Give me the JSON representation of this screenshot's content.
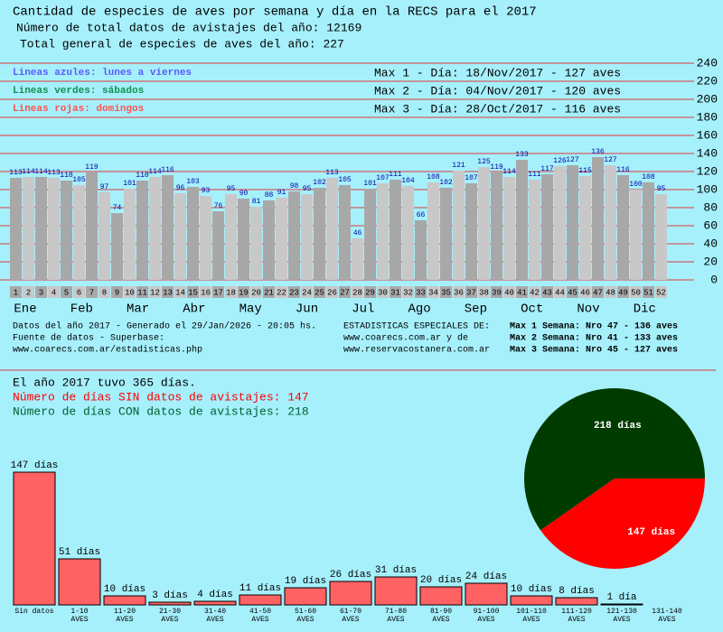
{
  "header": {
    "title": "Cantidad de especies de aves por semana y día en la RECS para el 2017",
    "line1": "Número de total datos de avistajes del año: 12169",
    "line2": "Total general de especies de aves del año: 227"
  },
  "legend_notes": [
    {
      "text": "Lineas azules: lunes a viernes",
      "color": "#5a5aff"
    },
    {
      "text": "Lineas verdes: sábados",
      "color": "#109050"
    },
    {
      "text": "Lineas rojas:  domingos",
      "color": "#ff5050"
    }
  ],
  "max_days": [
    "Max 1 - Día: 18/Nov/2017 - 127 aves",
    "Max 2 - Día: 04/Nov/2017 - 120 aves",
    "Max 3 - Día: 28/Oct/2017 - 116 aves"
  ],
  "chart_data": [
    {
      "type": "bar",
      "categories": [
        1,
        2,
        3,
        4,
        5,
        6,
        7,
        8,
        9,
        10,
        11,
        12,
        13,
        14,
        15,
        16,
        17,
        18,
        19,
        20,
        21,
        22,
        23,
        24,
        25,
        26,
        27,
        28,
        29,
        30,
        31,
        32,
        33,
        34,
        35,
        36,
        37,
        38,
        39,
        40,
        41,
        42,
        43,
        44,
        45,
        46,
        47,
        48,
        49,
        50,
        51,
        52
      ],
      "values": [
        113,
        114,
        114,
        113,
        110,
        105,
        119,
        97,
        74,
        101,
        110,
        114,
        116,
        96,
        103,
        93,
        76,
        95,
        90,
        81,
        88,
        91,
        98,
        95,
        102,
        113,
        105,
        46,
        101,
        107,
        111,
        104,
        66,
        108,
        102,
        121,
        107,
        125,
        119,
        114,
        133,
        111,
        117,
        126,
        127,
        115,
        136,
        127,
        116,
        100,
        108,
        95
      ],
      "colors": [
        "#a8a8a8",
        "#c8c8c8"
      ],
      "label_color": "#0000a0",
      "months": [
        "Ene",
        "Feb",
        "Mar",
        "Abr",
        "May",
        "Jun",
        "Jul",
        "Ago",
        "Sep",
        "Oct",
        "Nov",
        "Dic"
      ],
      "ylim": [
        0,
        240
      ],
      "yticks": [
        0,
        20,
        40,
        60,
        80,
        100,
        120,
        140,
        160,
        180,
        200,
        220,
        240
      ],
      "grid": true,
      "grid_color": "#e03a3a"
    },
    {
      "type": "pie",
      "values": [
        218,
        147
      ],
      "value_labels": [
        "218 días",
        "147 días"
      ],
      "colors": [
        "#003c00",
        "#ff0000"
      ]
    },
    {
      "type": "bar",
      "categories": [
        {
          "range": "Sin datos"
        },
        {
          "range": "1-10",
          "unit": "AVES"
        },
        {
          "range": "11-20",
          "unit": "AVES"
        },
        {
          "range": "21-30",
          "unit": "AVES"
        },
        {
          "range": "31-40",
          "unit": "AVES"
        },
        {
          "range": "41-50",
          "unit": "AVES"
        },
        {
          "range": "51-60",
          "unit": "AVES"
        },
        {
          "range": "61-70",
          "unit": "AVES"
        },
        {
          "range": "71-80",
          "unit": "AVES"
        },
        {
          "range": "81-90",
          "unit": "AVES"
        },
        {
          "range": "91-100",
          "unit": "AVES"
        },
        {
          "range": "101-110",
          "unit": "AVES"
        },
        {
          "range": "111-120",
          "unit": "AVES"
        },
        {
          "range": "121-130",
          "unit": "AVES"
        },
        {
          "range": "131-140",
          "unit": "AVES"
        }
      ],
      "values": [
        147,
        51,
        10,
        3,
        4,
        11,
        19,
        26,
        31,
        20,
        24,
        10,
        8,
        1,
        0
      ],
      "value_labels": [
        "147 días",
        "51 días",
        "10 días",
        "3 días",
        "4 días",
        "11 días",
        "19 días",
        "26 días",
        "31 días",
        "20 días",
        "24 días",
        "10 días",
        "8 días",
        "1 día",
        null
      ],
      "color": "#ff6262"
    }
  ],
  "footer": {
    "left": [
      "Datos del año 2017 - Generado el 29/Jan/2026 - 20:05 hs.",
      "Fuente de datos - Superbase:",
      "www.coarecs.com.ar/estadisticas.php"
    ],
    "middle": [
      "ESTADISTICAS ESPECIALES DE:",
      "www.coarecs.com.ar y de",
      "www.reservacostanera.com.ar"
    ],
    "right": [
      "Max 1 Semana: Nro 47 - 136 aves",
      "Max 2 Semana: Nro 41 - 133 aves",
      "Max 3 Semana: Nro 45 - 127 aves"
    ]
  },
  "summary": [
    {
      "text": "El año 2017 tuvo 365 días.",
      "color": "#000000"
    },
    {
      "text": "Número de días SIN datos de avistajes: 147",
      "color": "#ff0000"
    },
    {
      "text": "Número de días CON datos de avistajes: 218",
      "color": "#006030"
    }
  ]
}
